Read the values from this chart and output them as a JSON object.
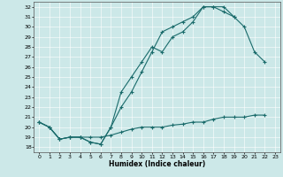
{
  "xlabel": "Humidex (Indice chaleur)",
  "xlim": [
    -0.5,
    23.5
  ],
  "ylim": [
    17.5,
    32.5
  ],
  "yticks": [
    18,
    19,
    20,
    21,
    22,
    23,
    24,
    25,
    26,
    27,
    28,
    29,
    30,
    31,
    32
  ],
  "xticks": [
    0,
    1,
    2,
    3,
    4,
    5,
    6,
    7,
    8,
    9,
    10,
    11,
    12,
    13,
    14,
    15,
    16,
    17,
    18,
    19,
    20,
    21,
    22,
    23
  ],
  "bg_color": "#cce8e8",
  "line_color": "#1a6b6b",
  "line1_y": [
    20.5,
    20.0,
    18.8,
    19.0,
    19.0,
    18.5,
    18.3,
    20.0,
    23.5,
    25.0,
    26.5,
    28.0,
    27.5,
    29.0,
    29.5,
    30.5,
    32.0,
    32.0,
    32.0,
    31.0,
    30.0,
    27.5,
    26.5,
    null
  ],
  "line2_y": [
    20.5,
    20.0,
    18.8,
    19.0,
    19.0,
    18.5,
    18.3,
    20.0,
    22.0,
    23.5,
    25.5,
    27.5,
    29.5,
    30.0,
    30.5,
    31.0,
    32.0,
    32.0,
    31.5,
    31.0,
    null,
    null,
    null,
    null
  ],
  "line3_y": [
    20.5,
    20.0,
    18.8,
    19.0,
    19.0,
    19.0,
    19.0,
    19.2,
    19.5,
    19.8,
    20.0,
    20.0,
    20.0,
    20.2,
    20.3,
    20.5,
    20.5,
    20.8,
    21.0,
    21.0,
    21.0,
    21.2,
    21.2,
    null
  ]
}
